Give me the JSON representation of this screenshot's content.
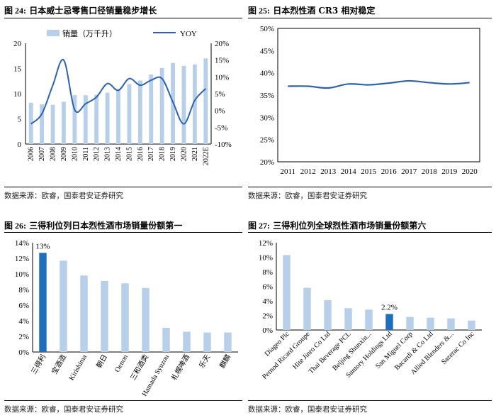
{
  "colors": {
    "bar_light": "#b7cfe9",
    "bar_highlight": "#1f6dbd",
    "line": "#2d62ae"
  },
  "panels": [
    {
      "fig": "图 24:",
      "title": "日本威士忌零售口径销量稳步增长",
      "source": "数据来源：欧睿，国泰君安证券研究"
    },
    {
      "fig": "图 25:",
      "title": "日本烈性酒 CR3 相对稳定",
      "source": "数据来源：欧睿，国泰君安证券研究"
    },
    {
      "fig": "图 26:",
      "title": "三得利位列日本烈性酒市场销量份额第一",
      "source": "数据来源：欧睿，国泰君安证券研究"
    },
    {
      "fig": "图 27:",
      "title": "三得利位列全球烈性酒市场销量份额第六",
      "source": "数据来源：欧睿，国泰君安证券研究"
    }
  ],
  "chart_data": [
    {
      "type": "bar+line",
      "legend": {
        "bar": "销量（万千升）",
        "line": "YOY"
      },
      "categories": [
        "2006",
        "2007",
        "2008",
        "2009",
        "2010",
        "2011",
        "2012",
        "2013",
        "2014",
        "2015",
        "2016",
        "2017",
        "2018",
        "2019",
        "2020",
        "2021",
        "2022E"
      ],
      "series": [
        {
          "name": "销量（万千升）",
          "axis": "left",
          "values": [
            8.2,
            7.9,
            7.8,
            8.4,
            9.7,
            9.7,
            9.8,
            10.2,
            10.9,
            11.9,
            12.6,
            13.8,
            15.1,
            16.1,
            15.5,
            15.8,
            17.0
          ]
        },
        {
          "name": "YOY",
          "axis": "right",
          "values": [
            -4.0,
            -1.0,
            7.5,
            15.0,
            0.2,
            2.0,
            4.0,
            8.0,
            6.0,
            9.5,
            7.5,
            9.0,
            9.5,
            2.5,
            -4.0,
            3.0,
            6.5
          ]
        }
      ],
      "ylim_left": [
        0,
        20
      ],
      "yticks_left": [
        "0",
        "5",
        "10",
        "15",
        "20"
      ],
      "ylim_right": [
        -10,
        20
      ],
      "yticks_right": [
        "-10%",
        "-5%",
        "0%",
        "5%",
        "10%",
        "15%",
        "20%"
      ]
    },
    {
      "type": "line",
      "categories": [
        "2011",
        "2012",
        "2013",
        "2014",
        "2015",
        "2016",
        "2017",
        "2018",
        "2019",
        "2020"
      ],
      "values": [
        37.0,
        37.0,
        36.6,
        37.5,
        37.3,
        37.7,
        38.2,
        37.8,
        37.5,
        37.8
      ],
      "ylim": [
        20,
        50
      ],
      "yticks": [
        "20%",
        "25%",
        "30%",
        "35%",
        "40%",
        "45%",
        "50%"
      ]
    },
    {
      "type": "bar",
      "categories": [
        "三得利",
        "宝酒造",
        "Kirishima",
        "朝日",
        "Oenon",
        "三和酒类",
        "Hamada Syuzou",
        "札幌啤酒",
        "乐天",
        "麒麟"
      ],
      "values": [
        12.7,
        11.7,
        9.8,
        9.1,
        8.8,
        8.2,
        3.1,
        2.6,
        2.5,
        2.5
      ],
      "highlight_index": 0,
      "highlight_label": "13%",
      "ylim": [
        0,
        14
      ],
      "yticks": [
        "0%",
        "2%",
        "4%",
        "6%",
        "8%",
        "10%",
        "12%",
        "14%"
      ]
    },
    {
      "type": "bar",
      "categories": [
        "Diageo Plc",
        "Pernod Ricard Groupe",
        "Hite Jinro Co Ltd",
        "Thai Beverage PCL",
        "Beijing Shunxin...",
        "Suntory Holdings Ltd",
        "San Miguel Corp",
        "Bacardi & Co Ltd",
        "Allied Blenders &...",
        "Sazerac Co Inc"
      ],
      "values": [
        10.3,
        5.8,
        4.1,
        3.0,
        2.8,
        2.2,
        1.8,
        1.7,
        1.6,
        1.3
      ],
      "highlight_index": 5,
      "highlight_label": "2.2%",
      "ylim": [
        0,
        12
      ],
      "yticks": [
        "0%",
        "2%",
        "4%",
        "6%",
        "8%",
        "10%",
        "12%"
      ]
    }
  ]
}
